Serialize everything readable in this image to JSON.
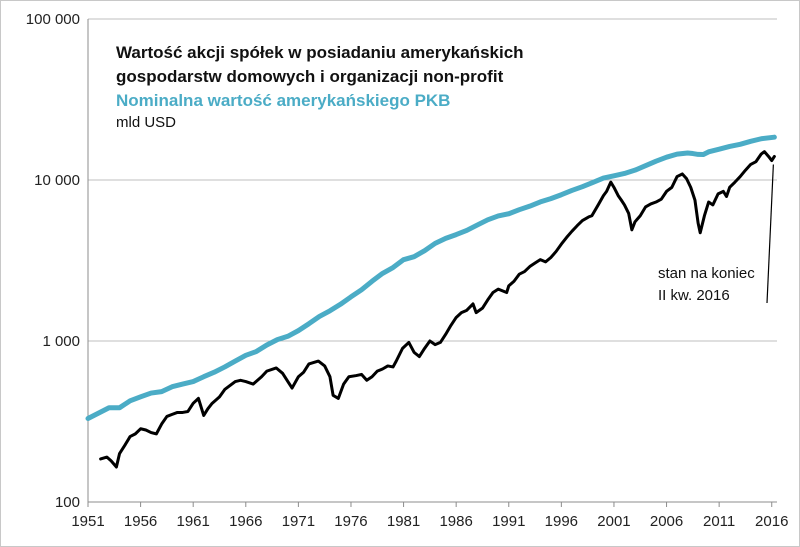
{
  "chart_data": {
    "type": "line",
    "title": "Wartość akcji spółek w posiadaniu amerykańskich gospodarstw domowych i organizacji non-profit",
    "title_line1": "Wartość akcji spółek w posiadaniu amerykańskich",
    "title_line2": "gospodarstw domowych i organizacji non-profit",
    "subtitle": "Nominalna wartość amerykańskiego PKB",
    "ylabel": "mld USD",
    "yscale": "log",
    "ylim": [
      100,
      100000
    ],
    "xlim": [
      1951,
      2016.5
    ],
    "xticks": [
      "1951",
      "1956",
      "1961",
      "1966",
      "1971",
      "1976",
      "1981",
      "1986",
      "1991",
      "1996",
      "2001",
      "2006",
      "2011",
      "2016"
    ],
    "yticks": [
      {
        "value": 100,
        "label": "100"
      },
      {
        "value": 1000,
        "label": "1 000"
      },
      {
        "value": 10000,
        "label": "10 000"
      },
      {
        "value": 100000,
        "label": "100 000"
      }
    ],
    "grid": true,
    "annotation": {
      "line1": "stan na koniec",
      "line2": "II kw. 2016",
      "x": 2016.25,
      "y": 14000
    },
    "colors": {
      "equities": "#000000",
      "gdp": "#4bacc6"
    },
    "series": [
      {
        "name": "Wartość akcji spółek w posiadaniu amerykańskich gospodarstw domowych i organizacji non-profit",
        "color": "#000000",
        "x": [
          1952.2,
          1952.8,
          1953.2,
          1953.7,
          1954.0,
          1954.5,
          1955.0,
          1955.5,
          1956.0,
          1956.5,
          1957.0,
          1957.5,
          1958.0,
          1958.5,
          1959.0,
          1959.5,
          1960.0,
          1960.5,
          1961.0,
          1961.5,
          1962.0,
          1962.4,
          1962.8,
          1963.5,
          1964.0,
          1965.0,
          1965.5,
          1966.0,
          1966.7,
          1967.5,
          1968.0,
          1968.9,
          1969.5,
          1970.0,
          1970.4,
          1971.0,
          1971.5,
          1972.0,
          1972.9,
          1973.5,
          1974.0,
          1974.3,
          1974.8,
          1975.3,
          1975.8,
          1976.5,
          1977.0,
          1977.5,
          1978.0,
          1978.5,
          1979.0,
          1979.5,
          1980.0,
          1980.3,
          1980.9,
          1981.5,
          1982.0,
          1982.5,
          1983.0,
          1983.5,
          1984.0,
          1984.5,
          1985.0,
          1985.5,
          1986.0,
          1986.5,
          1987.0,
          1987.6,
          1987.9,
          1988.5,
          1989.0,
          1989.5,
          1990.0,
          1990.8,
          1991.0,
          1991.5,
          1992.0,
          1992.5,
          1993.0,
          1993.5,
          1994.0,
          1994.5,
          1995.0,
          1995.5,
          1996.0,
          1996.5,
          1997.0,
          1997.5,
          1998.0,
          1998.6,
          1998.9,
          1999.5,
          2000.0,
          2000.3,
          2000.7,
          2001.0,
          2001.4,
          2001.7,
          2002.0,
          2002.4,
          2002.7,
          2003.0,
          2003.5,
          2004.0,
          2004.5,
          2005.0,
          2005.5,
          2006.0,
          2006.5,
          2007.0,
          2007.5,
          2007.9,
          2008.3,
          2008.7,
          2009.0,
          2009.2,
          2009.6,
          2010.0,
          2010.4,
          2010.9,
          2011.4,
          2011.7,
          2012.0,
          2012.5,
          2013.0,
          2013.5,
          2014.0,
          2014.5,
          2015.0,
          2015.3,
          2015.7,
          2016.0,
          2016.25
        ],
        "values": [
          185,
          190,
          180,
          165,
          200,
          225,
          255,
          265,
          285,
          280,
          270,
          265,
          305,
          340,
          350,
          360,
          360,
          365,
          410,
          440,
          345,
          380,
          410,
          450,
          500,
          560,
          570,
          560,
          540,
          600,
          650,
          680,
          630,
          560,
          510,
          600,
          640,
          720,
          750,
          700,
          600,
          460,
          440,
          540,
          600,
          610,
          620,
          570,
          600,
          650,
          670,
          700,
          690,
          750,
          900,
          980,
          850,
          800,
          900,
          1000,
          950,
          980,
          1100,
          1250,
          1400,
          1500,
          1550,
          1700,
          1500,
          1600,
          1800,
          2000,
          2100,
          2000,
          2200,
          2350,
          2600,
          2700,
          2900,
          3050,
          3200,
          3100,
          3300,
          3600,
          4000,
          4400,
          4800,
          5200,
          5600,
          5900,
          6000,
          7000,
          8000,
          8500,
          9700,
          9000,
          8000,
          7500,
          7000,
          6200,
          4900,
          5500,
          6000,
          6800,
          7100,
          7300,
          7600,
          8500,
          9000,
          10500,
          10900,
          10200,
          9000,
          7500,
          5400,
          4700,
          6000,
          7300,
          7000,
          8200,
          8500,
          7900,
          9000,
          9700,
          10500,
          11500,
          12500,
          13000,
          14500,
          15000,
          14000,
          13200,
          14000
        ]
      },
      {
        "name": "Nominalna wartość amerykańskiego PKB",
        "color": "#4bacc6",
        "x": [
          1951.0,
          1953.0,
          1954.0,
          1955.0,
          1956.0,
          1957.0,
          1958.0,
          1959.0,
          1960.0,
          1961.0,
          1962.0,
          1963.0,
          1964.0,
          1965.0,
          1966.0,
          1967.0,
          1968.0,
          1969.0,
          1970.0,
          1971.0,
          1972.0,
          1973.0,
          1974.0,
          1975.0,
          1976.0,
          1977.0,
          1978.0,
          1979.0,
          1980.0,
          1981.0,
          1982.0,
          1983.0,
          1984.0,
          1985.0,
          1986.0,
          1987.0,
          1988.0,
          1989.0,
          1990.0,
          1991.0,
          1992.0,
          1993.0,
          1994.0,
          1995.0,
          1996.0,
          1997.0,
          1998.0,
          1999.0,
          2000.0,
          2001.0,
          2002.0,
          2003.0,
          2004.0,
          2005.0,
          2006.0,
          2007.0,
          2008.0,
          2008.5,
          2009.0,
          2009.5,
          2010.0,
          2011.0,
          2012.0,
          2013.0,
          2014.0,
          2015.0,
          2016.25
        ],
        "values": [
          330,
          385,
          385,
          425,
          450,
          475,
          485,
          520,
          540,
          560,
          600,
          640,
          690,
          750,
          815,
          860,
          945,
          1020,
          1070,
          1160,
          1280,
          1420,
          1540,
          1690,
          1880,
          2080,
          2350,
          2630,
          2860,
          3200,
          3340,
          3640,
          4040,
          4340,
          4580,
          4860,
          5250,
          5660,
          5980,
          6170,
          6540,
          6880,
          7310,
          7660,
          8100,
          8610,
          9090,
          9660,
          10280,
          10620,
          10980,
          11510,
          12270,
          13090,
          13860,
          14480,
          14720,
          14600,
          14420,
          14400,
          14960,
          15540,
          16150,
          16660,
          17390,
          18040,
          18450
        ]
      }
    ]
  }
}
